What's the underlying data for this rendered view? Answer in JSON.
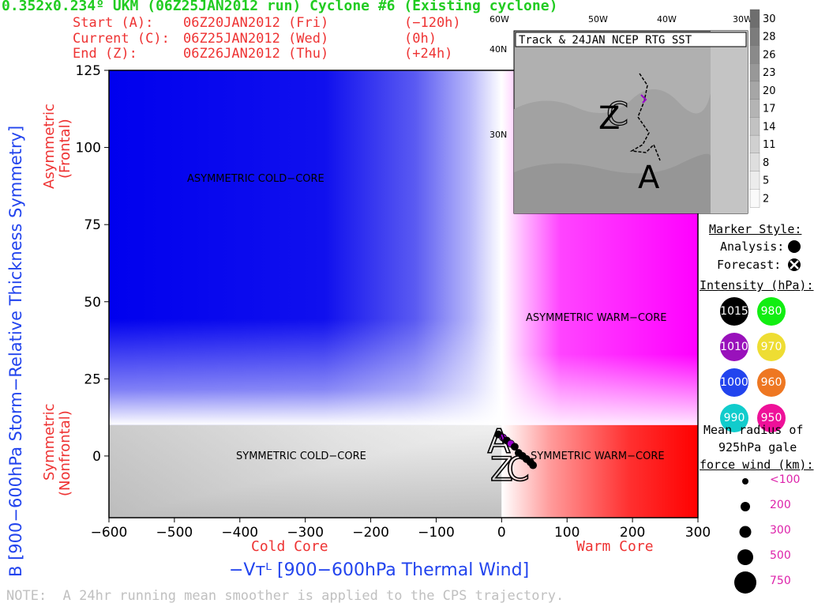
{
  "header": {
    "title": "0.352x0.234º UKM (06Z25JAN2012 run) Cyclone #6 (Existing cyclone)",
    "start_label": "Start (A):",
    "start_date": "06Z20JAN2012 (Fri)",
    "start_offset": "(−120h)",
    "current_label": "Current (C):",
    "current_date": "06Z25JAN2012 (Wed)",
    "current_offset": "(0h)",
    "end_label": "End (Z):",
    "end_date": "06Z26JAN2012 (Thu)",
    "end_offset": "(+24h)"
  },
  "chart_data": {
    "type": "scatter",
    "xlabel": "−Vᴛᴸ [900−600hPa Thermal Wind]",
    "ylabel": "B [900−600hPa Storm−Relative Thickness Symmetry]",
    "xlim": [
      -600,
      300
    ],
    "ylim": [
      -20,
      125
    ],
    "x_ticks": [
      "−600",
      "−500",
      "−400",
      "−300",
      "−200",
      "−100",
      "0",
      "100",
      "200",
      "300"
    ],
    "y_ticks": [
      "125",
      "100",
      "75",
      "50",
      "25",
      "0"
    ],
    "x_tick_values": [
      -600,
      -500,
      -400,
      -300,
      -200,
      -100,
      0,
      100,
      200,
      300
    ],
    "y_tick_values": [
      125,
      100,
      75,
      50,
      25,
      0
    ],
    "x_sub_left": "Cold Core",
    "x_sub_right": "Warm Core",
    "y_sub_top": [
      "Asymmetric",
      "(Frontal)"
    ],
    "y_sub_bottom": [
      "Symmetric",
      "(Nonfrontal)"
    ],
    "regions": {
      "asym_cold": "ASYMMETRIC COLD−CORE",
      "asym_warm": "ASYMMETRIC WARM−CORE",
      "sym_cold": "SYMMETRIC COLD−CORE",
      "sym_warm": "SYMMETRIC WARM−CORE"
    },
    "markers": {
      "start": "A",
      "current": "C",
      "end": "Z"
    },
    "series": [
      {
        "points": [
          {
            "x": -5,
            "y": 7,
            "color": "#000000"
          },
          {
            "x": 2,
            "y": 6,
            "color": "#9900cc"
          },
          {
            "x": 8,
            "y": 5,
            "color": "#000000"
          },
          {
            "x": 14,
            "y": 4,
            "color": "#9900cc"
          },
          {
            "x": 20,
            "y": 3,
            "color": "#000000"
          },
          {
            "x": 26,
            "y": 1,
            "color": "#000000"
          },
          {
            "x": 32,
            "y": 0,
            "color": "#000000"
          },
          {
            "x": 38,
            "y": -1,
            "color": "#000000"
          },
          {
            "x": 44,
            "y": -2,
            "color": "#000000"
          },
          {
            "x": 48,
            "y": -3,
            "color": "#000000"
          }
        ]
      }
    ]
  },
  "inset": {
    "title": "Track & 24JAN NCEP RTG SST",
    "lon_labels": [
      "60W",
      "50W",
      "40W",
      "30W"
    ],
    "lat_labels": [
      "40N",
      "30N"
    ],
    "colorbar": [
      "30",
      "28",
      "26",
      "23",
      "20",
      "17",
      "14",
      "11",
      "8",
      "5",
      "2"
    ],
    "marker_a": "A",
    "marker_c": "C",
    "marker_z": "Z"
  },
  "legend": {
    "marker_style": "Marker Style:",
    "analysis": "Analysis:",
    "forecast": "Forecast:",
    "intensity_title": "Intensity (hPa):",
    "intensity": [
      {
        "label": "1015",
        "color": "#000000"
      },
      {
        "label": "980",
        "color": "#11ee11"
      },
      {
        "label": "1010",
        "color": "#9911bb"
      },
      {
        "label": "970",
        "color": "#eedd33"
      },
      {
        "label": "1000",
        "color": "#2244ee"
      },
      {
        "label": "960",
        "color": "#ee7722"
      },
      {
        "label": "990",
        "color": "#11cccc"
      },
      {
        "label": "950",
        "color": "#ee1199"
      }
    ],
    "radius_title": [
      "Mean radius of",
      "925hPa gale",
      "force wind (km):"
    ],
    "radius": [
      "<100",
      "200",
      "300",
      "500",
      "750"
    ]
  },
  "note": "NOTE:  A 24hr running mean smoother is applied to the CPS trajectory."
}
